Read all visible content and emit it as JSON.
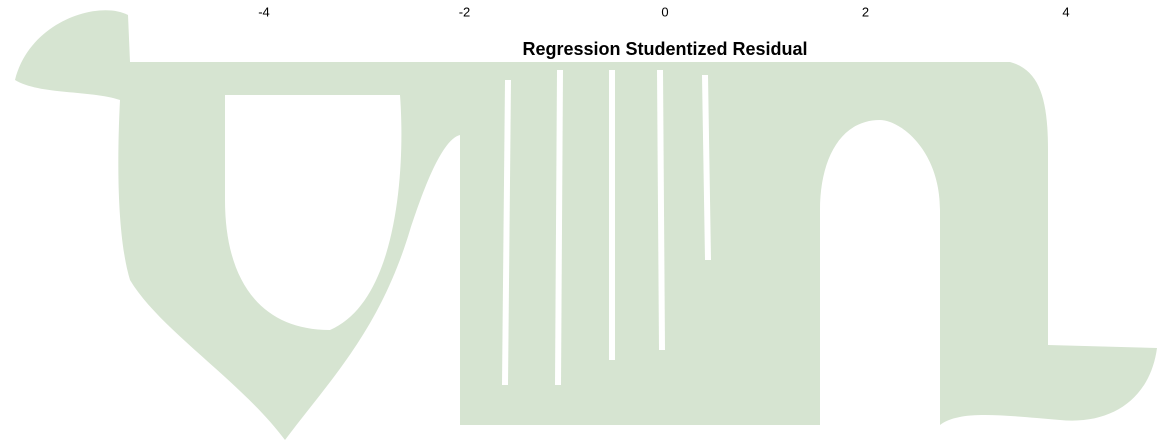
{
  "chart_data": {
    "type": "scatter",
    "xlabel": "Regression Studentized Residual",
    "xlim": [
      -4,
      4
    ],
    "xticks": [
      -4,
      -2,
      0,
      2,
      4
    ]
  }
}
